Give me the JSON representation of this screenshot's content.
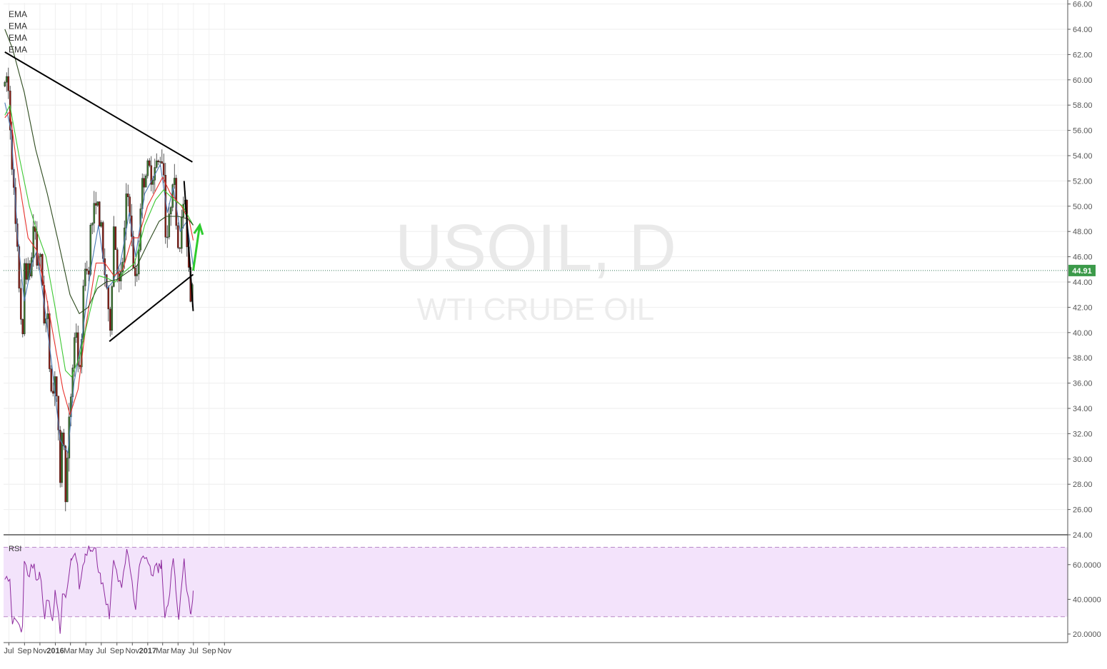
{
  "chart_data": [
    {
      "type": "candlestick",
      "title": "",
      "watermark": {
        "symbol": "USOIL, D",
        "name": "WTI CRUDE OIL"
      },
      "legend": [
        "EMA",
        "EMA",
        "EMA",
        "EMA"
      ],
      "x_ticks": [
        "Jul",
        "Sep",
        "Nov",
        "2016",
        "Mar",
        "May",
        "Jul",
        "Sep",
        "Nov",
        "2017",
        "Mar",
        "May",
        "Jul",
        "Sep",
        "Nov"
      ],
      "y_ticks": [
        "24.00",
        "26.00",
        "28.00",
        "30.00",
        "32.00",
        "34.00",
        "36.00",
        "38.00",
        "40.00",
        "42.00",
        "44.00",
        "46.00",
        "48.00",
        "50.00",
        "52.00",
        "54.00",
        "56.00",
        "58.00",
        "60.00",
        "62.00",
        "64.00",
        "66.00"
      ],
      "ylim": [
        24,
        66
      ],
      "x_range": [
        "2015-06-15",
        "2017-11-15"
      ],
      "last_price": "44.91",
      "grid": true,
      "price_path": [
        [
          "2015-06-15",
          59.5
        ],
        [
          "2015-06-25",
          60.5
        ],
        [
          "2015-07-05",
          57.0
        ],
        [
          "2015-07-15",
          53.0
        ],
        [
          "2015-07-25",
          49.0
        ],
        [
          "2015-08-05",
          45.5
        ],
        [
          "2015-08-15",
          42.5
        ],
        [
          "2015-08-24",
          38.5
        ],
        [
          "2015-08-31",
          45.5
        ],
        [
          "2015-09-10",
          45.0
        ],
        [
          "2015-09-20",
          44.5
        ],
        [
          "2015-09-28",
          45.5
        ],
        [
          "2015-10-09",
          49.5
        ],
        [
          "2015-10-20",
          45.5
        ],
        [
          "2015-10-30",
          46.5
        ],
        [
          "2015-11-10",
          44.0
        ],
        [
          "2015-11-20",
          40.5
        ],
        [
          "2015-11-30",
          41.5
        ],
        [
          "2015-12-10",
          37.0
        ],
        [
          "2015-12-21",
          34.7
        ],
        [
          "2015-12-31",
          37.3
        ],
        [
          "2016-01-10",
          33.5
        ],
        [
          "2016-01-20",
          27.5
        ],
        [
          "2016-01-29",
          33.5
        ],
        [
          "2016-02-11",
          27.0
        ],
        [
          "2016-02-20",
          31.0
        ],
        [
          "2016-03-01",
          34.5
        ],
        [
          "2016-03-10",
          37.5
        ],
        [
          "2016-03-22",
          41.0
        ],
        [
          "2016-04-05",
          35.7
        ],
        [
          "2016-04-15",
          40.5
        ],
        [
          "2016-04-28",
          45.5
        ],
        [
          "2016-05-10",
          44.5
        ],
        [
          "2016-05-20",
          48.5
        ],
        [
          "2016-06-01",
          49.0
        ],
        [
          "2016-06-09",
          51.2
        ],
        [
          "2016-06-20",
          49.0
        ],
        [
          "2016-06-30",
          48.3
        ],
        [
          "2016-07-10",
          45.0
        ],
        [
          "2016-07-20",
          44.5
        ],
        [
          "2016-08-02",
          39.5
        ],
        [
          "2016-08-10",
          42.5
        ],
        [
          "2016-08-19",
          48.5
        ],
        [
          "2016-08-30",
          46.0
        ],
        [
          "2016-09-10",
          43.5
        ],
        [
          "2016-09-20",
          44.5
        ],
        [
          "2016-10-01",
          48.0
        ],
        [
          "2016-10-10",
          51.0
        ],
        [
          "2016-10-20",
          50.5
        ],
        [
          "2016-10-31",
          46.5
        ],
        [
          "2016-11-14",
          43.5
        ],
        [
          "2016-11-25",
          46.0
        ],
        [
          "2016-11-30",
          49.5
        ],
        [
          "2016-12-10",
          51.5
        ],
        [
          "2016-12-20",
          52.5
        ],
        [
          "2017-01-03",
          53.0
        ],
        [
          "2017-01-15",
          52.5
        ],
        [
          "2017-01-30",
          53.0
        ],
        [
          "2017-02-15",
          53.5
        ],
        [
          "2017-02-24",
          54.2
        ],
        [
          "2017-03-05",
          53.0
        ],
        [
          "2017-03-10",
          48.5
        ],
        [
          "2017-03-22",
          47.5
        ],
        [
          "2017-04-01",
          50.0
        ],
        [
          "2017-04-12",
          53.3
        ],
        [
          "2017-04-22",
          49.5
        ],
        [
          "2017-05-04",
          46.0
        ],
        [
          "2017-05-12",
          48.0
        ],
        [
          "2017-05-25",
          51.0
        ],
        [
          "2017-06-05",
          47.5
        ],
        [
          "2017-06-15",
          44.5
        ],
        [
          "2017-06-21",
          42.5
        ],
        [
          "2017-06-30",
          44.9
        ]
      ],
      "ema_series": [
        {
          "color": "#4a7ab5",
          "points": [
            [
              "2015-06-15",
              58.2
            ],
            [
              "2015-07-10",
              56.0
            ],
            [
              "2015-08-05",
              47.5
            ],
            [
              "2015-08-31",
              42.5
            ],
            [
              "2015-10-01",
              45.5
            ],
            [
              "2015-10-20",
              46.5
            ],
            [
              "2015-11-20",
              42.0
            ],
            [
              "2015-12-21",
              37.0
            ],
            [
              "2016-01-20",
              31.5
            ],
            [
              "2016-02-20",
              30.5
            ],
            [
              "2016-03-15",
              36.0
            ],
            [
              "2016-04-15",
              39.5
            ],
            [
              "2016-05-20",
              45.0
            ],
            [
              "2016-06-20",
              48.5
            ],
            [
              "2016-07-25",
              43.5
            ],
            [
              "2016-08-15",
              44.0
            ],
            [
              "2016-09-15",
              45.5
            ],
            [
              "2016-10-20",
              49.5
            ],
            [
              "2016-11-14",
              46.0
            ],
            [
              "2016-12-20",
              51.0
            ],
            [
              "2017-02-20",
              53.3
            ],
            [
              "2017-03-20",
              49.5
            ],
            [
              "2017-04-12",
              51.5
            ],
            [
              "2017-05-10",
              48.0
            ],
            [
              "2017-06-05",
              48.8
            ],
            [
              "2017-06-30",
              45.3
            ]
          ]
        },
        {
          "color": "#e8312c",
          "points": [
            [
              "2015-06-15",
              57.0
            ],
            [
              "2015-07-05",
              57.5
            ],
            [
              "2015-08-10",
              52.0
            ],
            [
              "2015-09-15",
              47.5
            ],
            [
              "2015-10-20",
              46.5
            ],
            [
              "2015-11-25",
              43.0
            ],
            [
              "2015-12-31",
              39.0
            ],
            [
              "2016-01-31",
              35.5
            ],
            [
              "2016-02-28",
              33.5
            ],
            [
              "2016-03-31",
              35.5
            ],
            [
              "2016-05-01",
              40.5
            ],
            [
              "2016-06-10",
              45.5
            ],
            [
              "2016-07-15",
              45.5
            ],
            [
              "2016-08-20",
              44.5
            ],
            [
              "2016-09-25",
              45.0
            ],
            [
              "2016-10-31",
              47.5
            ],
            [
              "2016-11-25",
              47.5
            ],
            [
              "2016-12-31",
              50.0
            ],
            [
              "2017-03-01",
              52.3
            ],
            [
              "2017-04-01",
              51.0
            ],
            [
              "2017-05-15",
              50.0
            ],
            [
              "2017-06-15",
              48.8
            ],
            [
              "2017-06-30",
              47.3
            ]
          ]
        },
        {
          "color": "#3cc832",
          "points": [
            [
              "2015-06-15",
              57.2
            ],
            [
              "2015-07-05",
              58.0
            ],
            [
              "2015-08-10",
              54.0
            ],
            [
              "2015-09-20",
              50.0
            ],
            [
              "2015-10-20",
              48.0
            ],
            [
              "2015-11-25",
              46.0
            ],
            [
              "2015-12-31",
              42.0
            ],
            [
              "2016-02-10",
              37.0
            ],
            [
              "2016-03-05",
              36.5
            ],
            [
              "2016-04-05",
              38.0
            ],
            [
              "2016-05-15",
              41.5
            ],
            [
              "2016-06-20",
              44.5
            ],
            [
              "2016-07-25",
              44.3
            ],
            [
              "2016-08-25",
              44.0
            ],
            [
              "2016-10-01",
              44.8
            ],
            [
              "2016-11-10",
              45.5
            ],
            [
              "2016-12-20",
              48.5
            ],
            [
              "2017-02-01",
              50.5
            ],
            [
              "2017-03-05",
              51.3
            ],
            [
              "2017-04-15",
              50.5
            ],
            [
              "2017-05-20",
              50.0
            ],
            [
              "2017-06-30",
              48.5
            ]
          ]
        },
        {
          "color": "#2d4a1e",
          "points": [
            [
              "2015-06-15",
              64.0
            ],
            [
              "2015-07-15",
              62.5
            ],
            [
              "2015-08-31",
              59.0
            ],
            [
              "2015-10-15",
              54.5
            ],
            [
              "2015-11-30",
              51.0
            ],
            [
              "2016-01-15",
              47.0
            ],
            [
              "2016-02-28",
              43.0
            ],
            [
              "2016-04-05",
              41.5
            ],
            [
              "2016-05-10",
              42.0
            ],
            [
              "2016-06-15",
              43.5
            ],
            [
              "2016-07-20",
              44.0
            ],
            [
              "2016-09-01",
              44.2
            ],
            [
              "2016-10-15",
              44.8
            ],
            [
              "2016-11-20",
              45.3
            ],
            [
              "2016-12-31",
              47.0
            ],
            [
              "2017-02-15",
              48.8
            ],
            [
              "2017-03-15",
              49.2
            ],
            [
              "2017-05-01",
              49.2
            ],
            [
              "2017-06-10",
              49.0
            ],
            [
              "2017-06-30",
              48.5
            ]
          ]
        }
      ],
      "trendlines": [
        {
          "color": "#000000",
          "from": [
            "2015-06-15",
            62.2
          ],
          "to": [
            "2017-06-27",
            53.5
          ]
        },
        {
          "color": "#000000",
          "from": [
            "2016-08-02",
            39.3
          ],
          "to": [
            "2017-06-30",
            44.6
          ]
        },
        {
          "color": "#000000",
          "from": [
            "2017-05-25",
            52.0
          ],
          "to": [
            "2017-06-30",
            41.7
          ]
        }
      ],
      "arrow": {
        "color": "#2ecc2e",
        "from": [
          "2017-06-30",
          44.9
        ],
        "to": [
          "2017-07-26",
          48.5
        ]
      }
    },
    {
      "type": "line",
      "title": "",
      "legend": [
        "RSI"
      ],
      "y_ticks": [
        "20.0000",
        "40.0000",
        "60.0000"
      ],
      "ylim": [
        16,
        76
      ],
      "band": [
        30,
        70
      ],
      "color": "#8e2b9e",
      "points": [
        [
          "2015-06-15",
          55
        ],
        [
          "2015-07-05",
          50
        ],
        [
          "2015-07-15",
          28
        ],
        [
          "2015-08-05",
          24
        ],
        [
          "2015-08-24",
          22
        ],
        [
          "2015-08-31",
          60
        ],
        [
          "2015-09-20",
          56
        ],
        [
          "2015-10-09",
          62
        ],
        [
          "2015-10-20",
          48
        ],
        [
          "2015-10-30",
          58
        ],
        [
          "2015-11-20",
          32
        ],
        [
          "2015-11-30",
          40
        ],
        [
          "2015-12-21",
          29
        ],
        [
          "2015-12-31",
          42
        ],
        [
          "2016-01-20",
          22
        ],
        [
          "2016-01-29",
          44
        ],
        [
          "2016-02-11",
          38
        ],
        [
          "2016-03-05",
          64
        ],
        [
          "2016-03-22",
          68
        ],
        [
          "2016-04-05",
          48
        ],
        [
          "2016-04-28",
          66
        ],
        [
          "2016-05-20",
          70
        ],
        [
          "2016-06-09",
          72
        ],
        [
          "2016-06-20",
          55
        ],
        [
          "2016-06-30",
          52
        ],
        [
          "2016-07-20",
          40
        ],
        [
          "2016-08-02",
          32
        ],
        [
          "2016-08-19",
          64
        ],
        [
          "2016-08-30",
          58
        ],
        [
          "2016-09-20",
          44
        ],
        [
          "2016-10-10",
          68
        ],
        [
          "2016-10-31",
          52
        ],
        [
          "2016-11-14",
          34
        ],
        [
          "2016-11-30",
          58
        ],
        [
          "2016-12-20",
          64
        ],
        [
          "2017-01-15",
          56
        ],
        [
          "2017-02-15",
          58
        ],
        [
          "2017-02-24",
          60
        ],
        [
          "2017-03-10",
          30
        ],
        [
          "2017-03-22",
          34
        ],
        [
          "2017-04-12",
          66
        ],
        [
          "2017-04-22",
          48
        ],
        [
          "2017-05-04",
          28
        ],
        [
          "2017-05-25",
          60
        ],
        [
          "2017-06-05",
          48
        ],
        [
          "2017-06-21",
          30
        ],
        [
          "2017-06-30",
          45
        ]
      ]
    }
  ]
}
